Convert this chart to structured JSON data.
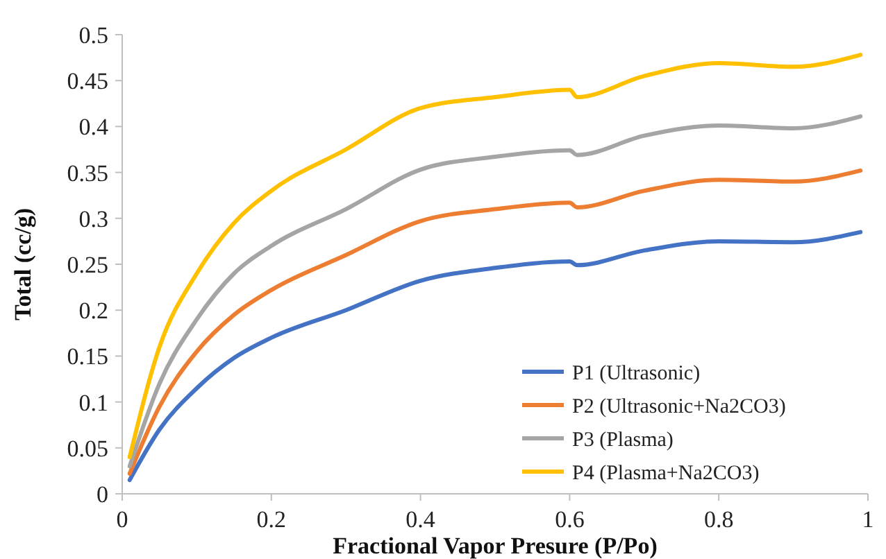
{
  "chart_data": {
    "type": "line",
    "xlabel": "Fractional Vapor Presure (P/Po)",
    "ylabel": "Total (cc/g)",
    "x": [
      0.01,
      0.05,
      0.1,
      0.15,
      0.2,
      0.3,
      0.4,
      0.5,
      0.6,
      0.61,
      0.7,
      0.8,
      0.9,
      0.99
    ],
    "xlim": [
      0,
      1
    ],
    "xticks": [
      0,
      0.2,
      0.4,
      0.6,
      0.8,
      1
    ],
    "ylim": [
      0,
      0.5
    ],
    "yticks": [
      0,
      0.05,
      0.1,
      0.15,
      0.2,
      0.25,
      0.3,
      0.35,
      0.4,
      0.45,
      0.5
    ],
    "grid": false,
    "legend": "bottom right",
    "marker": "none",
    "line_style": "solid",
    "series": [
      {
        "name": "P1 (Ultrasonic)",
        "color": "#4472c4",
        "values": [
          0.015,
          0.07,
          0.115,
          0.148,
          0.17,
          0.2,
          0.232,
          0.246,
          0.253,
          0.249,
          0.265,
          0.275,
          0.274,
          0.285
        ]
      },
      {
        "name": "P2 (Ultrasonic+Na2CO3)",
        "color": "#ed7d31",
        "values": [
          0.022,
          0.095,
          0.155,
          0.195,
          0.222,
          0.26,
          0.297,
          0.31,
          0.317,
          0.312,
          0.33,
          0.342,
          0.34,
          0.352
        ]
      },
      {
        "name": "P3 (Plasma)",
        "color": "#a5a5a5",
        "values": [
          0.03,
          0.12,
          0.19,
          0.24,
          0.27,
          0.31,
          0.353,
          0.367,
          0.374,
          0.369,
          0.39,
          0.401,
          0.398,
          0.411
        ]
      },
      {
        "name": "P4 (Plasma+Na2CO3)",
        "color": "#ffc000",
        "values": [
          0.04,
          0.16,
          0.24,
          0.295,
          0.33,
          0.375,
          0.42,
          0.432,
          0.44,
          0.432,
          0.455,
          0.469,
          0.465,
          0.478
        ]
      }
    ]
  }
}
